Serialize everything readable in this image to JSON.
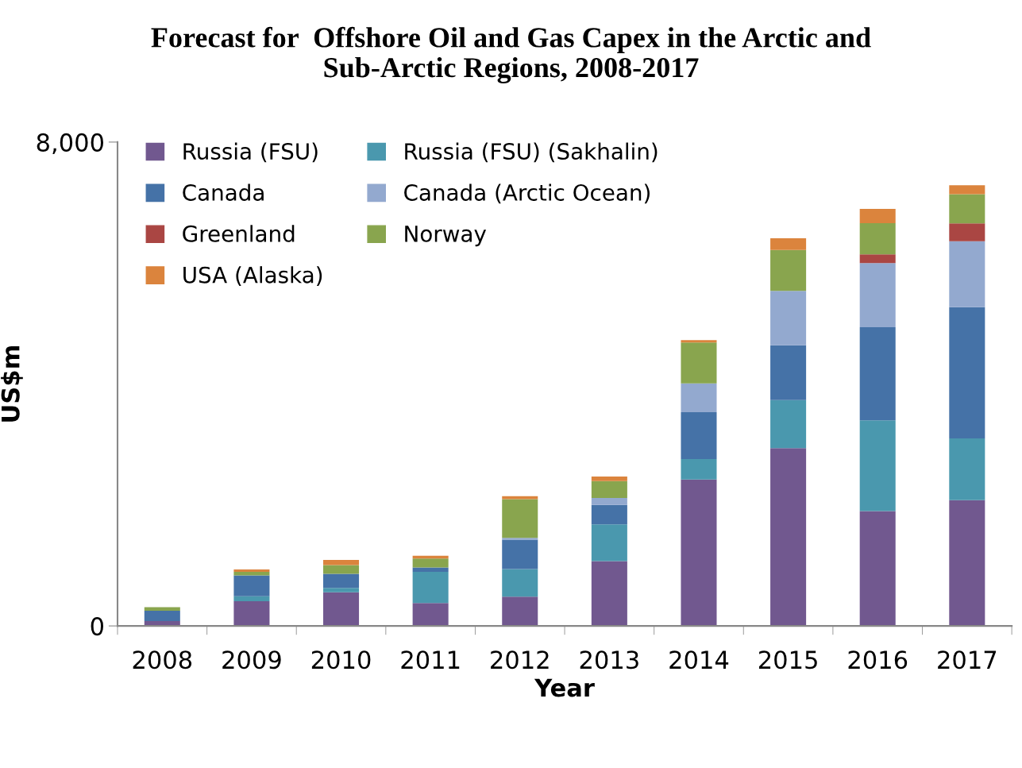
{
  "chart_data": {
    "type": "bar",
    "stacked": true,
    "title": "Forecast for  Offshore Oil and Gas Capex in the Arctic and\nSub-Arctic Regions, 2008-2017",
    "xlabel": "Year",
    "ylabel": "US$m",
    "categories": [
      "2008",
      "2009",
      "2010",
      "2011",
      "2012",
      "2013",
      "2014",
      "2015",
      "2016",
      "2017"
    ],
    "series": [
      {
        "name": "Russia (FSU)",
        "color": "#71588f",
        "values": [
          80,
          410,
          555,
          380,
          485,
          1070,
          2420,
          2940,
          1900,
          2080
        ]
      },
      {
        "name": "Russia (FSU) (Sakhalin)",
        "color": "#4a98ae",
        "values": [
          0,
          80,
          75,
          515,
          455,
          610,
          340,
          795,
          1500,
          1020
        ]
      },
      {
        "name": "Canada",
        "color": "#4572a7",
        "values": [
          170,
          345,
          230,
          70,
          485,
          320,
          775,
          905,
          1540,
          2170
        ]
      },
      {
        "name": "Canada (Arctic Ocean)",
        "color": "#93a9cf",
        "values": [
          0,
          0,
          0,
          0,
          30,
          115,
          475,
          900,
          1060,
          1090
        ]
      },
      {
        "name": "Greenland",
        "color": "#aa4643",
        "values": [
          0,
          0,
          0,
          0,
          0,
          0,
          0,
          0,
          145,
          295
        ]
      },
      {
        "name": "Norway",
        "color": "#89a54e",
        "values": [
          60,
          60,
          145,
          150,
          640,
          280,
          675,
          675,
          515,
          485
        ]
      },
      {
        "name": "USA (Alaska)",
        "color": "#db843d",
        "values": [
          0,
          40,
          85,
          45,
          50,
          75,
          40,
          195,
          235,
          145
        ]
      }
    ],
    "ylim": [
      0,
      8000
    ],
    "yticks": [
      0,
      {
        "value": 8000,
        "label": "8,000"
      }
    ],
    "grid": false,
    "legend": "top left"
  }
}
